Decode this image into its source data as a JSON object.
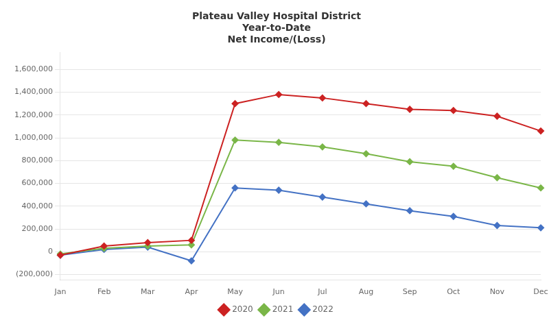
{
  "chart_data": {
    "type": "line",
    "title": "Plateau Valley Hospital District\nYear-to-Date\nNet Income/(Loss)",
    "categories": [
      "Jan",
      "Feb",
      "Mar",
      "Apr",
      "May",
      "Jun",
      "Jul",
      "Aug",
      "Sep",
      "Oct",
      "Nov",
      "Dec"
    ],
    "series": [
      {
        "name": "2020",
        "color": "#CC2222",
        "marker": "diamond",
        "values": [
          -30000,
          50000,
          80000,
          100000,
          1300000,
          1380000,
          1350000,
          1300000,
          1250000,
          1240000,
          1190000,
          1060000
        ]
      },
      {
        "name": "2021",
        "color": "#7AB648",
        "marker": "diamond",
        "values": [
          -20000,
          30000,
          50000,
          60000,
          980000,
          960000,
          920000,
          860000,
          790000,
          750000,
          650000,
          560000
        ]
      },
      {
        "name": "2022",
        "color": "#4472C4",
        "marker": "diamond",
        "values": [
          -30000,
          20000,
          40000,
          -80000,
          560000,
          540000,
          480000,
          420000,
          360000,
          310000,
          230000,
          210000
        ]
      }
    ],
    "ylim": [
      -250000,
      1750000
    ],
    "yticks": [
      {
        "value": -200000,
        "label": "(200,000)"
      },
      0,
      {
        "value": 200000,
        "label": "200,000"
      },
      {
        "value": 400000,
        "label": "400,000"
      },
      {
        "value": 600000,
        "label": "600,000"
      },
      {
        "value": 800000,
        "label": "800,000"
      },
      {
        "value": 1000000,
        "label": "1,000,000"
      },
      {
        "value": 1200000,
        "label": "1,200,000"
      },
      {
        "value": 1400000,
        "label": "1,400,000"
      },
      {
        "value": 1600000,
        "label": "1,600,000"
      }
    ],
    "grid": "y",
    "legend": "bottom"
  }
}
